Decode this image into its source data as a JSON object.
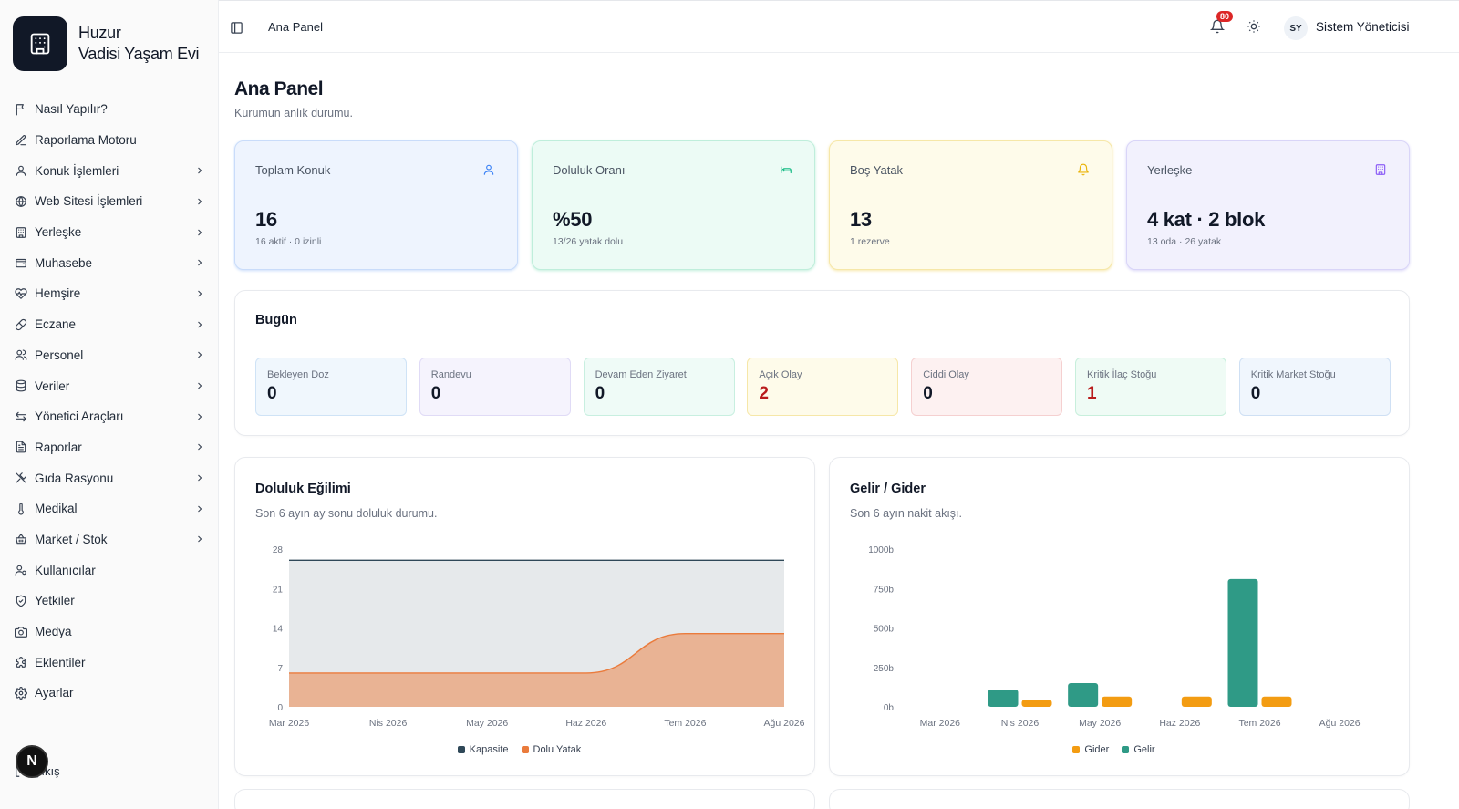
{
  "brand": {
    "name_line1": "Huzur",
    "name_line2": "Vadisi Yaşam Evi"
  },
  "sidebar": {
    "items": [
      {
        "label": "Nasıl Yapılır?",
        "icon": "flag-icon",
        "chevron": false
      },
      {
        "label": "Raporlama Motoru",
        "icon": "edit-icon",
        "chevron": false
      },
      {
        "label": "Konuk İşlemleri",
        "icon": "user-icon",
        "chevron": true
      },
      {
        "label": "Web Sitesi İşlemleri",
        "icon": "globe-icon",
        "chevron": true
      },
      {
        "label": "Yerleşke",
        "icon": "building-icon",
        "chevron": true
      },
      {
        "label": "Muhasebe",
        "icon": "wallet-icon",
        "chevron": true
      },
      {
        "label": "Hemşire",
        "icon": "heart-pulse-icon",
        "chevron": true
      },
      {
        "label": "Eczane",
        "icon": "pill-icon",
        "chevron": true
      },
      {
        "label": "Personel",
        "icon": "users-icon",
        "chevron": true
      },
      {
        "label": "Veriler",
        "icon": "database-icon",
        "chevron": true
      },
      {
        "label": "Yönetici Araçları",
        "icon": "arrows-icon",
        "chevron": true
      },
      {
        "label": "Raporlar",
        "icon": "file-text-icon",
        "chevron": true
      },
      {
        "label": "Gıda Rasyonu",
        "icon": "utensils-icon",
        "chevron": true
      },
      {
        "label": "Medikal",
        "icon": "thermometer-icon",
        "chevron": true
      },
      {
        "label": "Market / Stok",
        "icon": "basket-icon",
        "chevron": true
      },
      {
        "label": "Kullanıcılar",
        "icon": "user-cog-icon",
        "chevron": false
      },
      {
        "label": "Yetkiler",
        "icon": "shield-icon",
        "chevron": false
      },
      {
        "label": "Medya",
        "icon": "camera-icon",
        "chevron": false
      },
      {
        "label": "Eklentiler",
        "icon": "puzzle-icon",
        "chevron": false
      },
      {
        "label": "Ayarlar",
        "icon": "gear-icon",
        "chevron": false
      }
    ],
    "logout_label": "Çıkış",
    "dev_badge": "N"
  },
  "topbar": {
    "breadcrumb": "Ana Panel",
    "notification_count": "80",
    "user_initials": "SY",
    "user_name": "Sistem Yöneticisi"
  },
  "page": {
    "title": "Ana Panel",
    "subtitle": "Kurumun anlık durumu."
  },
  "stats": [
    {
      "label": "Toplam Konuk",
      "value": "16",
      "sub": "16 aktif · 0 izinli",
      "icon": "user-icon",
      "bg": "#eef4fe",
      "border": "#c9dcfa",
      "accent": "#3b82f6"
    },
    {
      "label": "Doluluk Oranı",
      "value": "%50",
      "sub": "13/26 yatak dolu",
      "icon": "bed-icon",
      "bg": "#ecfbf5",
      "border": "#bfeedb",
      "accent": "#10b981"
    },
    {
      "label": "Boş Yatak",
      "value": "13",
      "sub": "1 rezerve",
      "icon": "bell-icon",
      "bg": "#fefbea",
      "border": "#f6e7a8",
      "accent": "#eab308"
    },
    {
      "label": "Yerleşke",
      "value": "4 kat · 2 blok",
      "sub": "13 oda · 26 yatak",
      "icon": "building-icon",
      "bg": "#f2f1fd",
      "border": "#d9d5f8",
      "accent": "#8b5cf6"
    }
  ],
  "today": {
    "title": "Bugün",
    "items": [
      {
        "label": "Bekleyen Doz",
        "value": "0",
        "bg": "#f0f7fd",
        "border": "#cfe3f6",
        "color": "#111827"
      },
      {
        "label": "Randevu",
        "value": "0",
        "bg": "#f5f3fd",
        "border": "#e0dbf6",
        "color": "#111827"
      },
      {
        "label": "Devam Eden Ziyaret",
        "value": "0",
        "bg": "#effbf7",
        "border": "#c8efe0",
        "color": "#111827"
      },
      {
        "label": "Açık Olay",
        "value": "2",
        "bg": "#fefbea",
        "border": "#f6e7a8",
        "color": "#b91c1c"
      },
      {
        "label": "Ciddi Olay",
        "value": "0",
        "bg": "#fdf1f1",
        "border": "#f5d0d0",
        "color": "#111827"
      },
      {
        "label": "Kritik İlaç Stoğu",
        "value": "1",
        "bg": "#effbf5",
        "border": "#c8efdc",
        "color": "#b91c1c"
      },
      {
        "label": "Kritik Market Stoğu",
        "value": "0",
        "bg": "#f0f6fd",
        "border": "#cfe0f4",
        "color": "#111827"
      }
    ]
  },
  "occupancy_card": {
    "title": "Doluluk Eğilimi",
    "subtitle": "Son 6 ayın ay sonu doluluk durumu."
  },
  "finance_card": {
    "title": "Gelir / Gider",
    "subtitle": "Son 6 ayın nakit akışı."
  },
  "chart_data": [
    {
      "type": "area",
      "categories": [
        "Mar 2026",
        "Nis 2026",
        "May 2026",
        "Haz 2026",
        "Tem 2026",
        "Ağu 2026"
      ],
      "series": [
        {
          "name": "Kapasite",
          "values": [
            26,
            26,
            26,
            26,
            26,
            26
          ],
          "color": "#2f4858"
        },
        {
          "name": "Dolu Yatak",
          "values": [
            6,
            6,
            6,
            6,
            13,
            13
          ],
          "color": "#ea7b3c"
        }
      ],
      "yticks": [
        "0",
        "7",
        "14",
        "21",
        "28"
      ],
      "ylim": [
        0,
        28
      ]
    },
    {
      "type": "bar",
      "categories": [
        "Mar 2026",
        "Nis 2026",
        "May 2026",
        "Haz 2026",
        "Tem 2026",
        "Ağu 2026"
      ],
      "series": [
        {
          "name": "Gelir",
          "values": [
            0,
            110,
            150,
            0,
            810,
            0
          ],
          "color": "#2f9a86"
        },
        {
          "name": "Gider",
          "values": [
            0,
            45,
            65,
            65,
            65,
            0
          ],
          "color": "#f39c12"
        }
      ],
      "yticks": [
        "0b",
        "250b",
        "500b",
        "750b",
        "1000b"
      ],
      "ylim": [
        0,
        1000
      ]
    }
  ]
}
